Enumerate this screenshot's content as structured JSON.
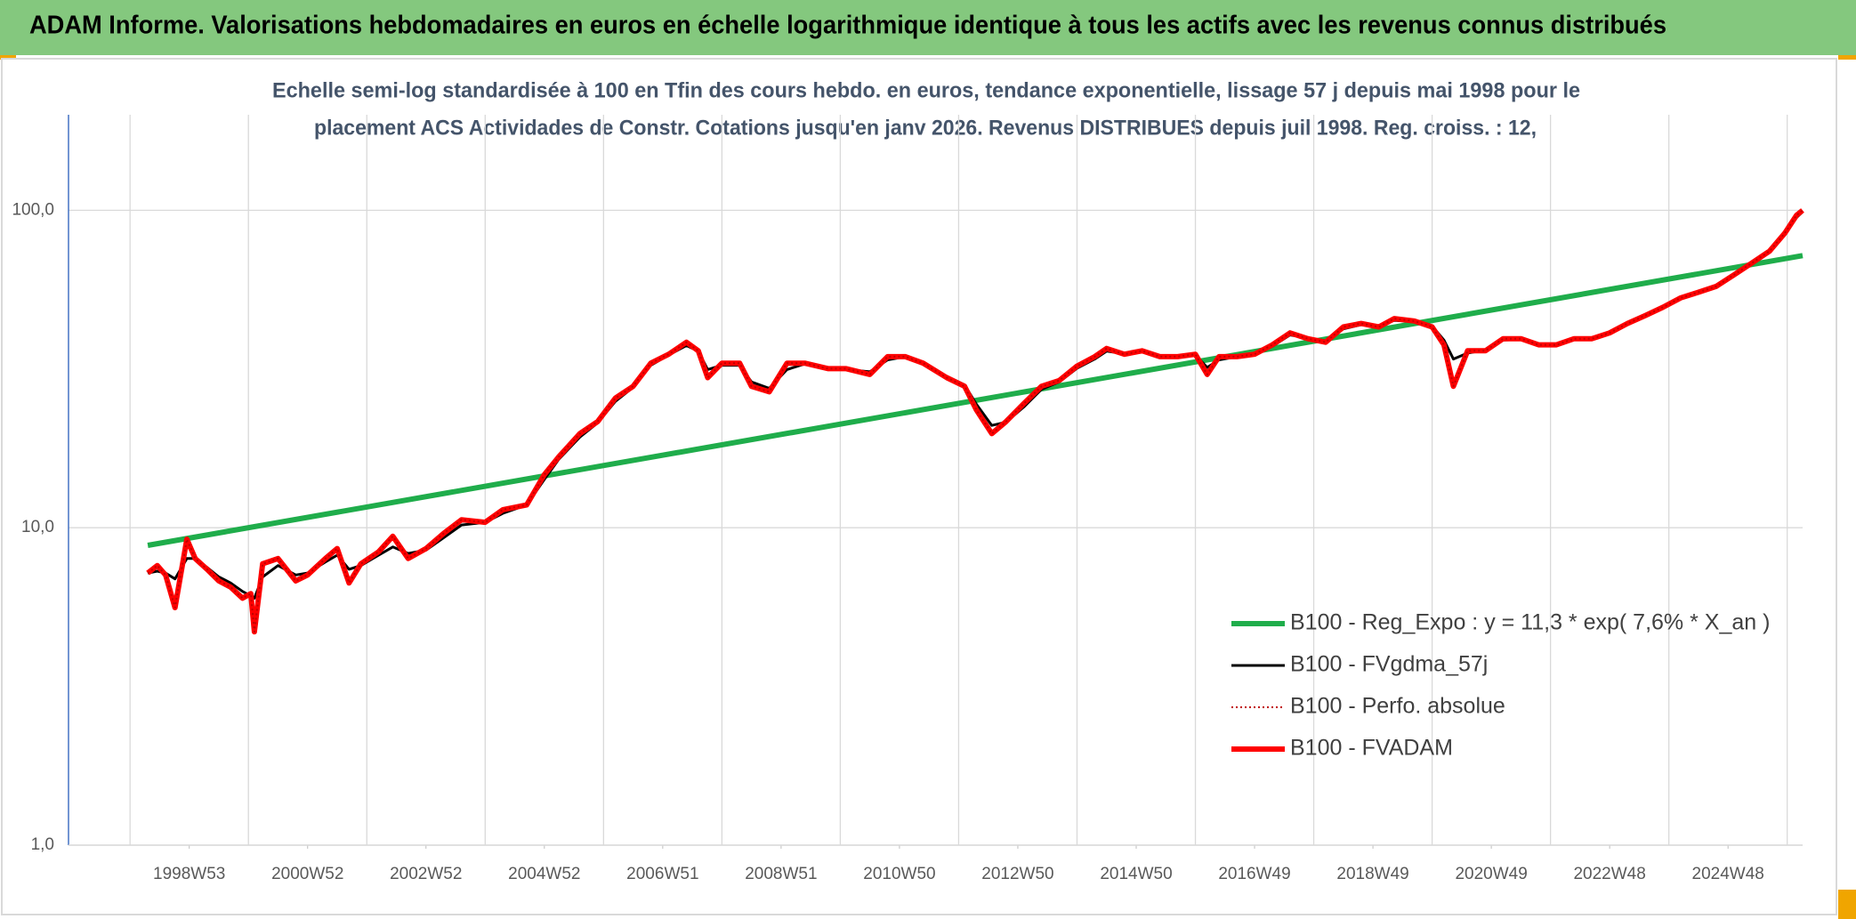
{
  "chart_data": {
    "type": "line",
    "title": "ADAM Informe. Valorisations hebdomadaires en euros en échelle logarithmique identique à tous les actifs avec les revenus connus distribués",
    "subtitle": [
      "Echelle semi-log standardisée à 100 en Tfin des cours hebdo. en euros, tendance exponentielle, lissage 57 j depuis mai 1998 pour le",
      "placement ACS Actividades de Constr. Cotations jusqu'en janv 2026. Revenus DISTRIBUES depuis juil 1998. Reg. croiss. : 12,"
    ],
    "log_y": true,
    "grid": true,
    "legend": "lower right",
    "xlim": [
      1996.96,
      2026.26
    ],
    "xticks": [
      {
        "value": 1999,
        "label": "1998W53"
      },
      {
        "value": 2001,
        "label": "2000W52"
      },
      {
        "value": 2003,
        "label": "2002W52"
      },
      {
        "value": 2005,
        "label": "2004W52"
      },
      {
        "value": 2007,
        "label": "2006W51"
      },
      {
        "value": 2009,
        "label": "2008W51"
      },
      {
        "value": 2011,
        "label": "2010W50"
      },
      {
        "value": 2013,
        "label": "2012W50"
      },
      {
        "value": 2015,
        "label": "2014W50"
      },
      {
        "value": 2017,
        "label": "2016W49"
      },
      {
        "value": 2019,
        "label": "2018W49"
      },
      {
        "value": 2021,
        "label": "2020W49"
      },
      {
        "value": 2023,
        "label": "2022W48"
      },
      {
        "value": 2025,
        "label": "2024W48"
      }
    ],
    "xgrid": [
      1998,
      2000,
      2002,
      2004,
      2006,
      2008,
      2010,
      2012,
      2014,
      2016,
      2018,
      2020,
      2022,
      2024,
      2026
    ],
    "ylim": [
      1,
      200
    ],
    "yticks": [
      {
        "value": 1,
        "label": "1,0"
      },
      {
        "value": 10,
        "label": "10,0"
      },
      {
        "value": 100,
        "label": "100,0"
      }
    ],
    "series": [
      {
        "name": "B100 - Reg_Expo : y = 11,3 * exp( 7,6% *  X_an )",
        "color": "#1fad4b",
        "style": "thick",
        "x": [
          1998.3,
          2026.26
        ],
        "values": [
          8.8,
          72
        ]
      },
      {
        "name": "B100 - FVgdma_57j",
        "color": "#000000",
        "style": "medium",
        "x": [
          1998.3,
          1998.46,
          1998.6,
          1998.76,
          1998.96,
          1999.1,
          1999.3,
          1999.5,
          1999.7,
          1999.9,
          2000.04,
          2000.1,
          2000.24,
          2000.5,
          2000.8,
          2001.0,
          2001.3,
          2001.5,
          2001.7,
          2001.9,
          2002.2,
          2002.44,
          2002.7,
          2003.0,
          2003.3,
          2003.6,
          2004.0,
          2004.3,
          2004.7,
          2005.0,
          2005.24,
          2005.6,
          2005.9,
          2006.2,
          2006.5,
          2006.8,
          2007.1,
          2007.4,
          2007.6,
          2007.76,
          2008.0,
          2008.3,
          2008.5,
          2008.8,
          2009.1,
          2009.4,
          2009.8,
          2010.1,
          2010.5,
          2010.8,
          2011.1,
          2011.4,
          2011.8,
          2012.1,
          2012.3,
          2012.56,
          2012.8,
          2013.1,
          2013.4,
          2013.7,
          2014.0,
          2014.3,
          2014.5,
          2014.8,
          2015.1,
          2015.4,
          2015.7,
          2016.0,
          2016.2,
          2016.4,
          2016.7,
          2017.0,
          2017.3,
          2017.6,
          2017.9,
          2018.2,
          2018.5,
          2018.8,
          2019.1,
          2019.36,
          2019.7,
          2020.0,
          2020.2,
          2020.36,
          2020.6,
          2020.9,
          2021.2,
          2021.5,
          2021.8,
          2022.1,
          2022.4,
          2022.7,
          2023.0,
          2023.3,
          2023.6,
          2023.9,
          2024.2,
          2024.5,
          2024.8,
          2025.1,
          2025.4,
          2025.7,
          2025.96,
          2026.16,
          2026.26
        ],
        "values": [
          7.2,
          7.3,
          7.2,
          6.9,
          8.0,
          8.0,
          7.5,
          7.0,
          6.7,
          6.3,
          6.1,
          6.0,
          7.0,
          7.6,
          7.1,
          7.2,
          7.8,
          8.2,
          7.4,
          7.6,
          8.2,
          8.7,
          8.3,
          8.5,
          9.3,
          10.2,
          10.4,
          11.1,
          11.8,
          14.2,
          16.4,
          19.3,
          21.4,
          25.0,
          27.7,
          32.5,
          35.0,
          37.5,
          36.0,
          31.5,
          32.5,
          32.5,
          28.8,
          27.5,
          31.5,
          32.8,
          31.8,
          31.5,
          31.0,
          33.8,
          34.6,
          33.0,
          30.0,
          28.2,
          24.5,
          21.0,
          21.5,
          24.0,
          27.3,
          28.8,
          31.8,
          34.0,
          36.0,
          35.3,
          35.8,
          34.8,
          34.6,
          35.0,
          32.0,
          33.8,
          34.6,
          35.0,
          37.3,
          40.5,
          39.6,
          38.8,
          42.3,
          43.6,
          43.2,
          45.0,
          44.6,
          43.2,
          39.0,
          34.0,
          35.5,
          36.3,
          39.0,
          39.2,
          37.9,
          37.8,
          39.1,
          39.4,
          41.0,
          43.6,
          46.3,
          49.2,
          52.6,
          55.0,
          57.4,
          62.0,
          67.6,
          73.8,
          84.0,
          95.0,
          99.0
        ]
      },
      {
        "name": "B100 - Perfo. absolue",
        "color": "#c00000",
        "style": "dotted",
        "x": [
          1998.3,
          1998.46,
          1998.6,
          1998.76,
          1998.96,
          1999.1,
          1999.3,
          1999.5,
          1999.7,
          1999.9,
          2000.04,
          2000.1,
          2000.24,
          2000.5,
          2000.8,
          2001.0,
          2001.3,
          2001.5,
          2001.7,
          2001.9,
          2002.2,
          2002.44,
          2002.7,
          2003.0,
          2003.3,
          2003.6,
          2004.0,
          2004.3,
          2004.7,
          2005.0,
          2005.24,
          2005.6,
          2005.9,
          2006.2,
          2006.5,
          2006.8,
          2007.1,
          2007.4,
          2007.6,
          2007.76,
          2008.0,
          2008.3,
          2008.5,
          2008.8,
          2009.1,
          2009.4,
          2009.8,
          2010.1,
          2010.5,
          2010.8,
          2011.1,
          2011.4,
          2011.8,
          2012.1,
          2012.3,
          2012.56,
          2012.8,
          2013.1,
          2013.4,
          2013.7,
          2014.0,
          2014.3,
          2014.5,
          2014.8,
          2015.1,
          2015.4,
          2015.7,
          2016.0,
          2016.2,
          2016.4,
          2016.7,
          2017.0,
          2017.3,
          2017.6,
          2017.9,
          2018.2,
          2018.5,
          2018.8,
          2019.1,
          2019.36,
          2019.7,
          2020.0,
          2020.2,
          2020.36,
          2020.6,
          2020.9,
          2021.2,
          2021.5,
          2021.8,
          2022.1,
          2022.4,
          2022.7,
          2023.0,
          2023.3,
          2023.6,
          2023.9,
          2024.2,
          2024.5,
          2024.8,
          2025.1,
          2025.4,
          2025.7,
          2025.96,
          2026.16,
          2026.26
        ],
        "values": [
          7.2,
          7.6,
          7.1,
          5.6,
          9.2,
          8.0,
          7.4,
          6.8,
          6.5,
          6.0,
          6.2,
          4.7,
          7.7,
          8.0,
          6.8,
          7.1,
          8.0,
          8.6,
          6.7,
          7.7,
          8.4,
          9.4,
          8.0,
          8.6,
          9.6,
          10.6,
          10.4,
          11.4,
          11.8,
          14.7,
          16.7,
          19.8,
          21.6,
          25.6,
          27.9,
          33,
          35.2,
          38.4,
          36.1,
          29.7,
          33,
          33,
          27.9,
          26.8,
          33,
          33,
          31.7,
          31.7,
          30.4,
          34.6,
          34.6,
          33,
          29.7,
          27.9,
          23.5,
          19.8,
          21.6,
          24.6,
          27.9,
          29.1,
          32.3,
          34.6,
          36.7,
          35.2,
          36.1,
          34.6,
          34.6,
          35.2,
          30.4,
          34.6,
          34.6,
          35.2,
          37.7,
          41.1,
          39.4,
          38.4,
          42.9,
          44.0,
          42.9,
          45.6,
          44.8,
          42.9,
          37.7,
          27.9,
          36.1,
          36.1,
          39.4,
          39.4,
          37.7,
          37.7,
          39.4,
          39.4,
          41.1,
          44.0,
          46.6,
          49.5,
          53.0,
          55.2,
          57.6,
          62.6,
          68.2,
          74.3,
          84.7,
          96.6,
          100
        ]
      },
      {
        "name": "B100 - FVADAM",
        "color": "#ff0000",
        "style": "thick",
        "x": [
          1998.3,
          1998.46,
          1998.6,
          1998.76,
          1998.96,
          1999.1,
          1999.3,
          1999.5,
          1999.7,
          1999.9,
          2000.04,
          2000.1,
          2000.24,
          2000.5,
          2000.8,
          2001.0,
          2001.3,
          2001.5,
          2001.7,
          2001.9,
          2002.2,
          2002.44,
          2002.7,
          2003.0,
          2003.3,
          2003.6,
          2004.0,
          2004.3,
          2004.7,
          2005.0,
          2005.24,
          2005.6,
          2005.9,
          2006.2,
          2006.5,
          2006.8,
          2007.1,
          2007.4,
          2007.6,
          2007.76,
          2008.0,
          2008.3,
          2008.5,
          2008.8,
          2009.1,
          2009.4,
          2009.8,
          2010.1,
          2010.5,
          2010.8,
          2011.1,
          2011.4,
          2011.8,
          2012.1,
          2012.3,
          2012.56,
          2012.8,
          2013.1,
          2013.4,
          2013.7,
          2014.0,
          2014.3,
          2014.5,
          2014.8,
          2015.1,
          2015.4,
          2015.7,
          2016.0,
          2016.2,
          2016.4,
          2016.7,
          2017.0,
          2017.3,
          2017.6,
          2017.9,
          2018.2,
          2018.5,
          2018.8,
          2019.1,
          2019.36,
          2019.7,
          2020.0,
          2020.2,
          2020.36,
          2020.6,
          2020.9,
          2021.2,
          2021.5,
          2021.8,
          2022.1,
          2022.4,
          2022.7,
          2023.0,
          2023.3,
          2023.6,
          2023.9,
          2024.2,
          2024.5,
          2024.8,
          2025.1,
          2025.4,
          2025.7,
          2025.96,
          2026.16,
          2026.26
        ],
        "values": [
          7.2,
          7.6,
          7.1,
          5.6,
          9.2,
          8.0,
          7.4,
          6.8,
          6.5,
          6.0,
          6.2,
          4.7,
          7.7,
          8.0,
          6.8,
          7.1,
          8.0,
          8.6,
          6.7,
          7.7,
          8.4,
          9.4,
          8.0,
          8.6,
          9.6,
          10.6,
          10.4,
          11.4,
          11.8,
          14.7,
          16.7,
          19.8,
          21.6,
          25.6,
          27.9,
          33,
          35.2,
          38.4,
          36.1,
          29.7,
          33,
          33,
          27.9,
          26.8,
          33,
          33,
          31.7,
          31.7,
          30.4,
          34.6,
          34.6,
          33,
          29.7,
          27.9,
          23.5,
          19.8,
          21.6,
          24.6,
          27.9,
          29.1,
          32.3,
          34.6,
          36.7,
          35.2,
          36.1,
          34.6,
          34.6,
          35.2,
          30.4,
          34.6,
          34.6,
          35.2,
          37.7,
          41.1,
          39.4,
          38.4,
          42.9,
          44.0,
          42.9,
          45.6,
          44.8,
          42.9,
          37.7,
          27.9,
          36.1,
          36.1,
          39.4,
          39.4,
          37.7,
          37.7,
          39.4,
          39.4,
          41.1,
          44.0,
          46.6,
          49.5,
          53.0,
          55.2,
          57.6,
          62.6,
          68.2,
          74.3,
          84.7,
          96.6,
          100
        ]
      }
    ]
  }
}
